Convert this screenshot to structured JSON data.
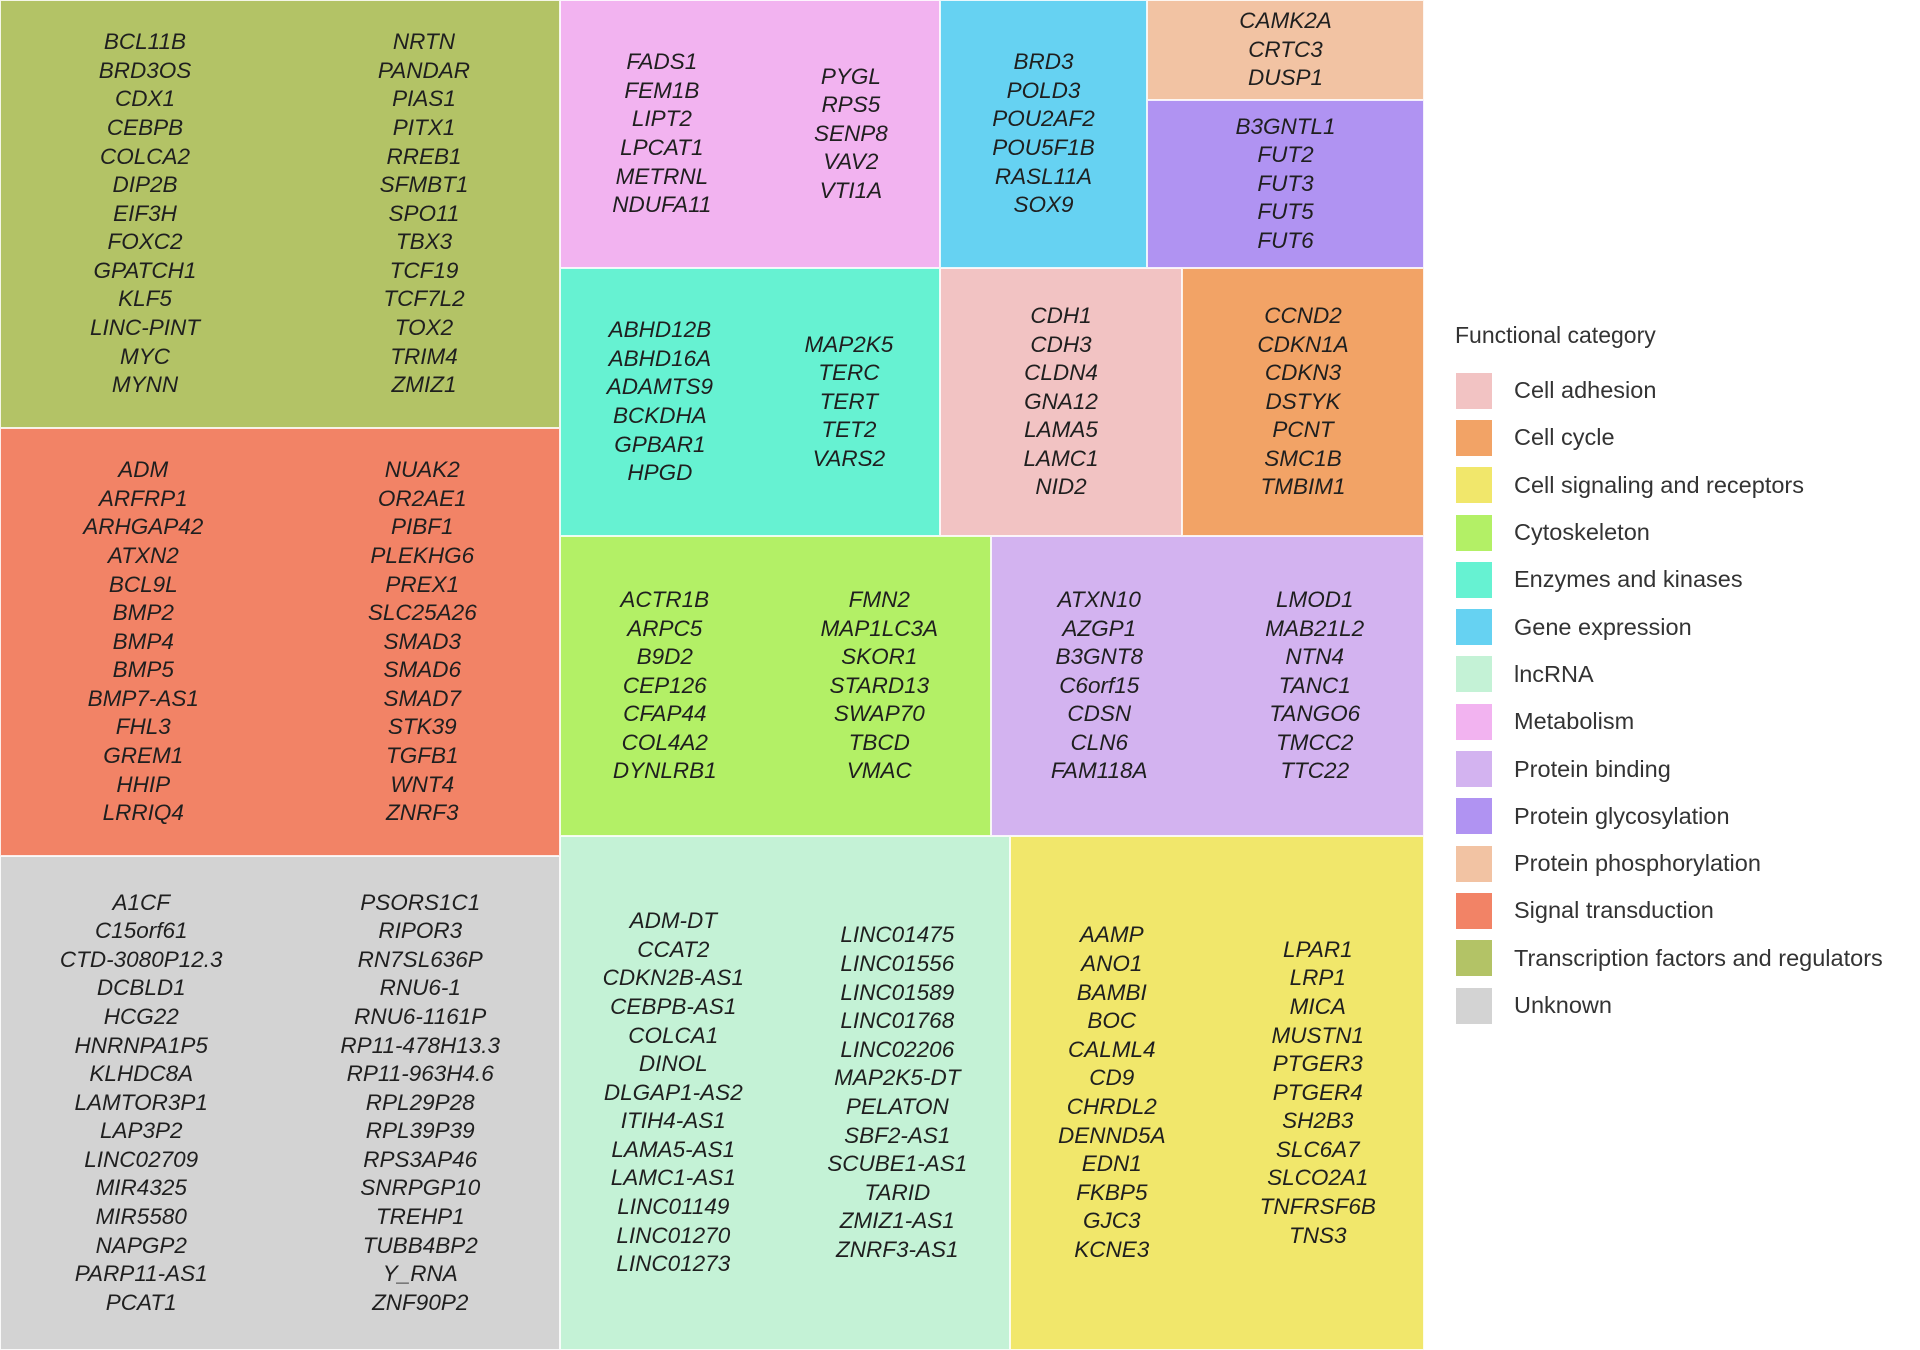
{
  "chart_data": {
    "type": "treemap",
    "legend": {
      "title": "Functional category",
      "placement": "right",
      "items": [
        {
          "label": "Cell adhesion",
          "color": "#f2c3c3"
        },
        {
          "label": "Cell cycle",
          "color": "#f2a366"
        },
        {
          "label": "Cell signaling and receptors",
          "color": "#f1e76b"
        },
        {
          "label": "Cytoskeleton",
          "color": "#b3f066"
        },
        {
          "label": "Enzymes and kinases",
          "color": "#66f2d2"
        },
        {
          "label": "Gene expression",
          "color": "#66d2f2"
        },
        {
          "label": "lncRNA",
          "color": "#c4f2d6"
        },
        {
          "label": "Metabolism",
          "color": "#f2b3f0"
        },
        {
          "label": "Protein binding",
          "color": "#d3b3f0"
        },
        {
          "label": "Protein glycosylation",
          "color": "#b093f2"
        },
        {
          "label": "Protein phosphorylation",
          "color": "#f2c3a3"
        },
        {
          "label": "Signal transduction",
          "color": "#f28366"
        },
        {
          "label": "Transcription factors and regulators",
          "color": "#b3c366"
        },
        {
          "label": "Unknown",
          "color": "#d3d3d3"
        }
      ]
    },
    "categories": [
      {
        "name": "Transcription factors and regulators",
        "count": 26,
        "columns": [
          [
            "BCL11B",
            "BRD3OS",
            "CDX1",
            "CEBPB",
            "COLCA2",
            "DIP2B",
            "EIF3H",
            "FOXC2",
            "GPATCH1",
            "KLF5",
            "LINC-PINT",
            "MYC",
            "MYNN"
          ],
          [
            "NRTN",
            "PANDAR",
            "PIAS1",
            "PITX1",
            "RREB1",
            "SFMBT1",
            "SPO11",
            "TBX3",
            "TCF19",
            "TCF7L2",
            "TOX2",
            "TRIM4",
            "ZMIZ1"
          ]
        ]
      },
      {
        "name": "Signal transduction",
        "count": 26,
        "columns": [
          [
            "ADM",
            "ARFRP1",
            "ARHGAP42",
            "ATXN2",
            "BCL9L",
            "BMP2",
            "BMP4",
            "BMP5",
            "BMP7-AS1",
            "FHL3",
            "GREM1",
            "HHIP",
            "LRRIQ4"
          ],
          [
            "NUAK2",
            "OR2AE1",
            "PIBF1",
            "PLEKHG6",
            "PREX1",
            "SLC25A26",
            "SMAD3",
            "SMAD6",
            "SMAD7",
            "STK39",
            "TGFB1",
            "WNT4",
            "ZNRF3"
          ]
        ]
      },
      {
        "name": "Unknown",
        "count": 30,
        "columns": [
          [
            "A1CF",
            "C15orf61",
            "CTD-3080P12.3",
            "DCBLD1",
            "HCG22",
            "HNRNPA1P5",
            "KLHDC8A",
            "LAMTOR3P1",
            "LAP3P2",
            "LINC02709",
            "MIR4325",
            "MIR5580",
            "NAPGP2",
            "PARP11-AS1",
            "PCAT1"
          ],
          [
            "PSORS1C1",
            "RIPOR3",
            "RN7SL636P",
            "RNU6-1",
            "RNU6-1161P",
            "RP11-478H13.3",
            "RP11-963H4.6",
            "RPL29P28",
            "RPL39P39",
            "RPS3AP46",
            "SNRPGP10",
            "TREHP1",
            "TUBB4BP2",
            "Y_RNA",
            "ZNF90P2"
          ]
        ]
      },
      {
        "name": "Metabolism",
        "count": 11,
        "columns": [
          [
            "FADS1",
            "FEM1B",
            "LIPT2",
            "LPCAT1",
            "METRNL",
            "NDUFA11"
          ],
          [
            "PYGL",
            "RPS5",
            "SENP8",
            "VAV2",
            "VTI1A"
          ]
        ]
      },
      {
        "name": "Gene expression",
        "count": 6,
        "columns": [
          [
            "BRD3",
            "POLD3",
            "POU2AF2",
            "POU5F1B",
            "RASL11A",
            "SOX9"
          ]
        ]
      },
      {
        "name": "Protein phosphorylation",
        "count": 3,
        "columns": [
          [
            "CAMK2A",
            "CRTC3",
            "DUSP1"
          ]
        ]
      },
      {
        "name": "Protein glycosylation",
        "count": 5,
        "columns": [
          [
            "B3GNTL1",
            "FUT2",
            "FUT3",
            "FUT5",
            "FUT6"
          ]
        ]
      },
      {
        "name": "Enzymes and kinases",
        "count": 11,
        "columns": [
          [
            "ABHD12B",
            "ABHD16A",
            "ADAMTS9",
            "BCKDHA",
            "GPBAR1",
            "HPGD"
          ],
          [
            "MAP2K5",
            "TERC",
            "TERT",
            "TET2",
            "VARS2"
          ]
        ]
      },
      {
        "name": "Cell adhesion",
        "count": 7,
        "columns": [
          [
            "CDH1",
            "CDH3",
            "CLDN4",
            "GNA12",
            "LAMA5",
            "LAMC1",
            "NID2"
          ]
        ]
      },
      {
        "name": "Cell cycle",
        "count": 7,
        "columns": [
          [
            "CCND2",
            "CDKN1A",
            "CDKN3",
            "DSTYK",
            "PCNT",
            "SMC1B",
            "TMBIM1"
          ]
        ]
      },
      {
        "name": "Cytoskeleton",
        "count": 14,
        "columns": [
          [
            "ACTR1B",
            "ARPC5",
            "B9D2",
            "CEP126",
            "CFAP44",
            "COL4A2",
            "DYNLRB1"
          ],
          [
            "FMN2",
            "MAP1LC3A",
            "SKOR1",
            "STARD13",
            "SWAP70",
            "TBCD",
            "VMAC"
          ]
        ]
      },
      {
        "name": "Protein binding",
        "count": 14,
        "columns": [
          [
            "ATXN10",
            "AZGP1",
            "B3GNT8",
            "C6orf15",
            "CDSN",
            "CLN6",
            "FAM118A"
          ],
          [
            "LMOD1",
            "MAB21L2",
            "NTN4",
            "TANC1",
            "TANGO6",
            "TMCC2",
            "TTC22"
          ]
        ]
      },
      {
        "name": "lncRNA",
        "count": 25,
        "columns": [
          [
            "ADM-DT",
            "CCAT2",
            "CDKN2B-AS1",
            "CEBPB-AS1",
            "COLCA1",
            "DINOL",
            "DLGAP1-AS2",
            "ITIH4-AS1",
            "LAMA5-AS1",
            "LAMC1-AS1",
            "LINC01149",
            "LINC01270",
            "LINC01273"
          ],
          [
            "LINC01475",
            "LINC01556",
            "LINC01589",
            "LINC01768",
            "LINC02206",
            "MAP2K5-DT",
            "PELATON",
            "SBF2-AS1",
            "SCUBE1-AS1",
            "TARID",
            "ZMIZ1-AS1",
            "ZNRF3-AS1"
          ]
        ]
      },
      {
        "name": "Cell signaling and receptors",
        "count": 23,
        "columns": [
          [
            "AAMP",
            "ANO1",
            "BAMBI",
            "BOC",
            "CALML4",
            "CD9",
            "CHRDL2",
            "DENND5A",
            "EDN1",
            "FKBP5",
            "GJC3",
            "KCNE3"
          ],
          [
            "LPAR1",
            "LRP1",
            "MICA",
            "MUSTN1",
            "PTGER3",
            "PTGER4",
            "SH2B3",
            "SLC6A7",
            "SLCO2A1",
            "TNFRSF6B",
            "TNS3"
          ]
        ]
      }
    ]
  }
}
